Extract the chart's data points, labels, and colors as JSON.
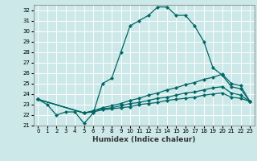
{
  "xlabel": "Humidex (Indice chaleur)",
  "background_color": "#cce8e8",
  "grid_color": "#aacccc",
  "line_color": "#006666",
  "xlim": [
    -0.5,
    23.5
  ],
  "ylim": [
    21,
    32.5
  ],
  "yticks": [
    21,
    22,
    23,
    24,
    25,
    26,
    27,
    28,
    29,
    30,
    31,
    32
  ],
  "xticks": [
    0,
    1,
    2,
    3,
    4,
    5,
    6,
    7,
    8,
    9,
    10,
    11,
    12,
    13,
    14,
    15,
    16,
    17,
    18,
    19,
    20,
    21,
    22,
    23
  ],
  "series": [
    {
      "x": [
        0,
        1,
        2,
        3,
        4,
        5,
        6,
        7,
        8,
        9,
        10,
        11,
        12,
        13,
        14,
        15,
        16,
        17,
        18,
        19,
        20,
        21,
        22,
        23
      ],
      "y": [
        23.5,
        23.0,
        22.0,
        22.3,
        22.3,
        21.2,
        22.2,
        25.0,
        25.5,
        28.0,
        30.5,
        31.0,
        31.5,
        32.3,
        32.3,
        31.5,
        31.5,
        30.5,
        29.0,
        26.5,
        25.8,
        24.7,
        24.5,
        23.3
      ]
    },
    {
      "x": [
        0,
        5,
        6,
        7,
        8,
        9,
        10,
        11,
        12,
        13,
        14,
        15,
        16,
        17,
        18,
        19,
        20,
        21,
        22,
        23
      ],
      "y": [
        23.5,
        22.2,
        22.4,
        22.7,
        22.9,
        23.1,
        23.4,
        23.6,
        23.9,
        24.1,
        24.4,
        24.6,
        24.9,
        25.1,
        25.4,
        25.6,
        25.9,
        25.0,
        24.8,
        23.3
      ]
    },
    {
      "x": [
        0,
        5,
        6,
        7,
        8,
        9,
        10,
        11,
        12,
        13,
        14,
        15,
        16,
        17,
        18,
        19,
        20,
        21,
        22,
        23
      ],
      "y": [
        23.5,
        22.2,
        22.4,
        22.6,
        22.7,
        22.9,
        23.1,
        23.2,
        23.4,
        23.6,
        23.7,
        23.9,
        24.1,
        24.2,
        24.4,
        24.6,
        24.7,
        24.1,
        23.9,
        23.3
      ]
    },
    {
      "x": [
        0,
        5,
        6,
        7,
        8,
        9,
        10,
        11,
        12,
        13,
        14,
        15,
        16,
        17,
        18,
        19,
        20,
        21,
        22,
        23
      ],
      "y": [
        23.5,
        22.2,
        22.3,
        22.5,
        22.6,
        22.7,
        22.8,
        23.0,
        23.1,
        23.2,
        23.4,
        23.5,
        23.6,
        23.7,
        23.9,
        24.0,
        24.1,
        23.7,
        23.6,
        23.3
      ]
    }
  ]
}
